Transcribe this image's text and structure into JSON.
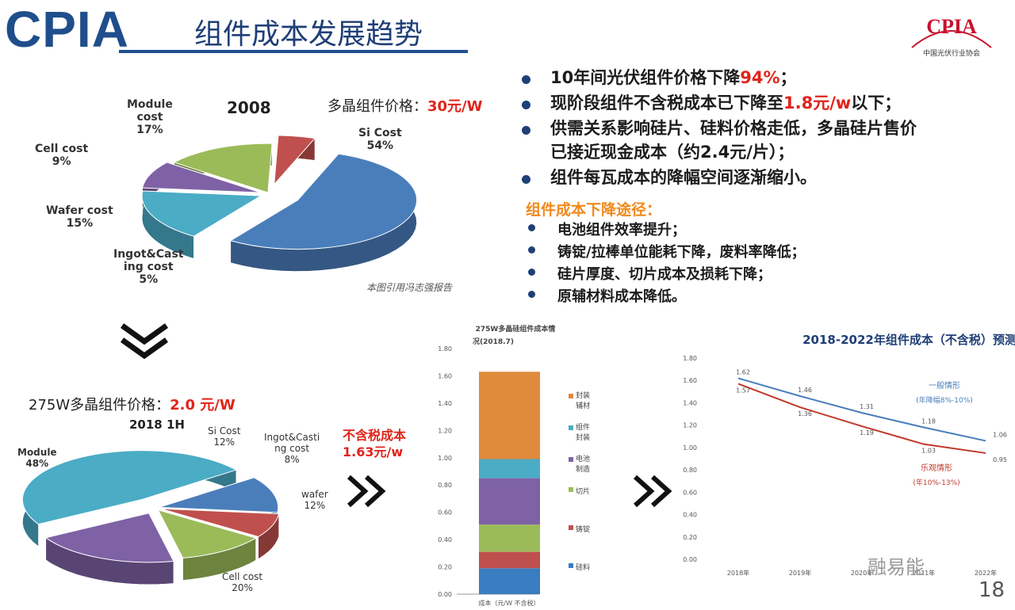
{
  "header": {
    "logo": "CPIA",
    "title": "组件成本发展趋势",
    "brand_logo": "CPIA",
    "brand_sub": "中国光伏行业协会"
  },
  "bullets": [
    {
      "pre": "10年间光伏组件价格下降",
      "hl": "94%",
      "post": "；"
    },
    {
      "pre": "现阶段组件不含税成本已下降至",
      "hl": "1.8元/w",
      "post": "以下；"
    },
    {
      "pre": "供需关系影响硅片、硅料价格走低，多晶硅片售价",
      "hl": "",
      "post": ""
    },
    {
      "pre": "已接近现金成本（约2.4元/片）；",
      "hl": "",
      "post": ""
    },
    {
      "pre": "组件每瓦成本的降幅空间逐渐缩小。",
      "hl": "",
      "post": ""
    }
  ],
  "routes_title": "组件成本下降途径：",
  "routes": [
    "电池组件效率提升；",
    "铸锭/拉棒单位能耗下降，废料率降低；",
    "硅片厚度、切片成本及损耗下降；",
    "原辅材料成本降低。"
  ],
  "pie2008": {
    "price_label": "多晶组件价格：",
    "price_value": "30元/W",
    "title": "2008",
    "note": "本图引用冯志强报告",
    "labels": {
      "si": "Si Cost\n54%",
      "module": "Module\ncost\n17%",
      "cell": "Cell cost\n9%",
      "wafer": "Wafer cost\n15%",
      "ingot": "Ingot&Cast\ning cost\n5%"
    }
  },
  "pie2018": {
    "price_label": "275W多晶组件价格：",
    "price_value": "2.0 元/W",
    "title": "2018 1H",
    "labels": {
      "module": "Module\n48%",
      "si": "Si Cost\n12%",
      "ingot": "Ingot&Casti\nng cost\n8%",
      "wafer": "wafer\n12%",
      "cell": "Cell cost\n20%"
    }
  },
  "mid_note": "不含税成本\n1.63元/w",
  "chart_data": [
    {
      "type": "pie",
      "title": "2008",
      "series": [
        {
          "values": [
            54,
            17,
            9,
            15,
            5
          ],
          "labels": [
            "Si Cost",
            "Module cost",
            "Cell cost",
            "Wafer cost",
            "Ingot&Casting cost"
          ]
        }
      ],
      "colors": [
        "#4a7ebb",
        "#4bacc6",
        "#7f62a6",
        "#9bbb59",
        "#c0504d"
      ]
    },
    {
      "type": "pie",
      "title": "2018 1H",
      "series": [
        {
          "values": [
            48,
            12,
            8,
            12,
            20
          ],
          "labels": [
            "Module",
            "Si Cost",
            "Ingot&Casting cost",
            "wafer",
            "Cell cost"
          ]
        }
      ],
      "colors": [
        "#4bacc6",
        "#4a7ebb",
        "#c0504d",
        "#9bbb59",
        "#7f62a6"
      ]
    },
    {
      "type": "bar",
      "title": "275W多晶硅组件成本情况(2018.7)",
      "categories": [
        "成本（元/W 不含税）"
      ],
      "series": [
        {
          "name": "硅料",
          "values": [
            0.19
          ]
        },
        {
          "name": "铸锭",
          "values": [
            0.12
          ]
        },
        {
          "name": "切片",
          "values": [
            0.2
          ]
        },
        {
          "name": "电池制造",
          "values": [
            0.34
          ]
        },
        {
          "name": "组件封装",
          "values": [
            0.14
          ]
        },
        {
          "name": "封装辅材",
          "values": [
            0.64
          ]
        }
      ],
      "colors": [
        "#3a7dc0",
        "#c0504d",
        "#9bbb59",
        "#7f62a6",
        "#4bacc6",
        "#e08a3c"
      ],
      "ylim": [
        0,
        1.8
      ],
      "yticks": [
        "0.00",
        "0.20",
        "0.40",
        "0.60",
        "0.80",
        "1.00",
        "1.20",
        "1.40",
        "1.60",
        "1.80"
      ],
      "stacked": true
    },
    {
      "type": "line",
      "title": "2018-2022年组件成本（不含税）预测",
      "x": [
        "2018年",
        "2019年",
        "2020年",
        "2021年",
        "2022年"
      ],
      "series": [
        {
          "name": "一般情形",
          "values": [
            1.62,
            1.46,
            1.31,
            1.18,
            1.06
          ],
          "color": "#4a7ebb"
        },
        {
          "name": "乐观情形",
          "values": [
            1.57,
            1.36,
            1.19,
            1.03,
            0.95
          ],
          "color": "#c0392b"
        }
      ],
      "annotations": [
        "一般情形",
        "(年降幅8%-10%)",
        "乐观情形",
        "(年10%-13%)"
      ],
      "ylim": [
        0,
        1.8
      ],
      "yticks": [
        "0.00",
        "0.20",
        "0.40",
        "0.60",
        "0.80",
        "1.00",
        "1.20",
        "1.40",
        "1.60",
        "1.80"
      ]
    }
  ],
  "watermark": "融易能",
  "page_number": "18"
}
